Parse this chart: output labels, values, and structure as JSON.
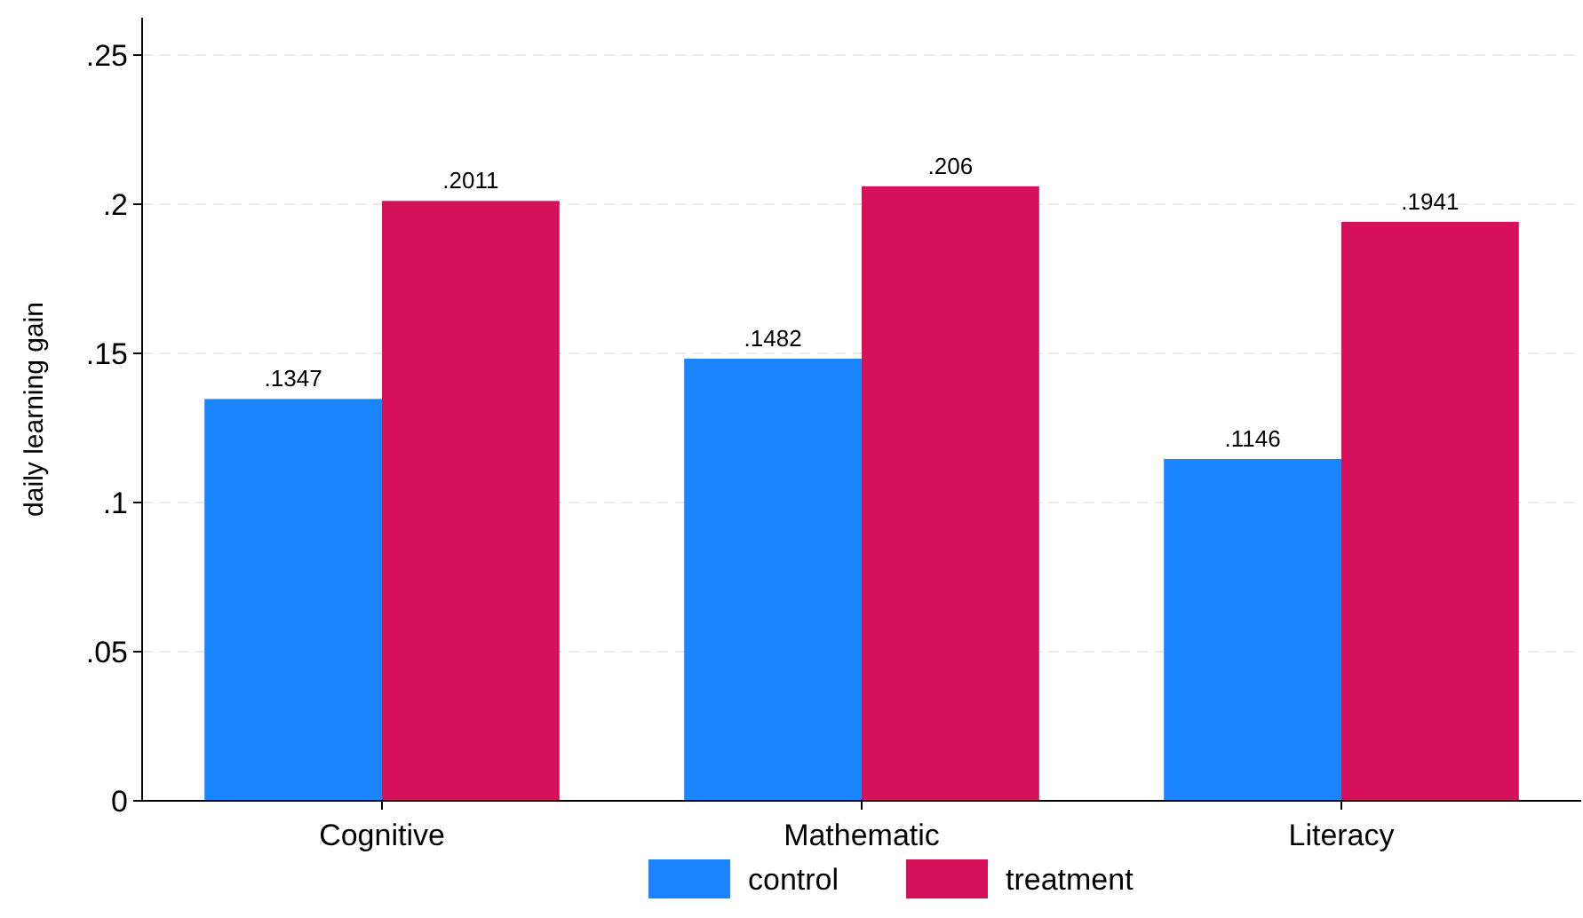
{
  "chart_data": {
    "type": "bar",
    "ylabel": "daily learning gain",
    "categories": [
      "Cognitive",
      "Mathematic",
      "Literacy"
    ],
    "series": [
      {
        "name": "control",
        "color": "#1a85ff",
        "values": [
          0.1347,
          0.1482,
          0.1146
        ],
        "value_labels": [
          ".1347",
          ".1482",
          ".1146"
        ]
      },
      {
        "name": "treatment",
        "color": "#d41159",
        "values": [
          0.2011,
          0.206,
          0.1941
        ],
        "value_labels": [
          ".2011",
          ".206",
          ".1941"
        ]
      }
    ],
    "ylim": [
      0,
      0.2625
    ],
    "yticks": [
      {
        "value": 0,
        "label": "0"
      },
      {
        "value": 0.05,
        "label": ".05"
      },
      {
        "value": 0.1,
        "label": ".1"
      },
      {
        "value": 0.15,
        "label": ".15"
      },
      {
        "value": 0.2,
        "label": ".2"
      },
      {
        "value": 0.25,
        "label": ".25"
      }
    ],
    "grid": "y",
    "legend": "bottom"
  }
}
